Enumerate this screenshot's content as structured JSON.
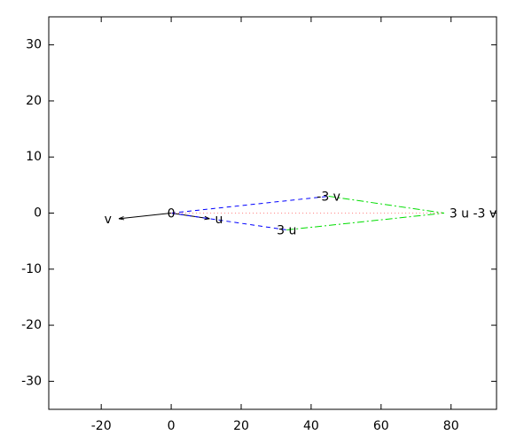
{
  "chart_data": {
    "type": "vector",
    "xlim": [
      -35,
      93
    ],
    "ylim": [
      -35,
      35
    ],
    "xticks": [
      -20,
      0,
      20,
      40,
      60,
      80
    ],
    "yticks": [
      -30,
      -20,
      -10,
      0,
      10,
      20,
      30
    ],
    "segments": [
      {
        "x": [
          0,
          11
        ],
        "y": [
          0,
          -1
        ],
        "color": "#000000",
        "style": "solid",
        "arrow": true
      },
      {
        "x": [
          0,
          -15
        ],
        "y": [
          0,
          -1
        ],
        "color": "#000000",
        "style": "solid",
        "arrow": true
      },
      {
        "x": [
          0,
          33
        ],
        "y": [
          0,
          -3
        ],
        "color": "#0000ff",
        "style": "dashed",
        "arrow": false
      },
      {
        "x": [
          0,
          45
        ],
        "y": [
          0,
          3
        ],
        "color": "#0000ff",
        "style": "dashed",
        "arrow": false
      },
      {
        "x": [
          33,
          78
        ],
        "y": [
          -3,
          0
        ],
        "color": "#00dd00",
        "style": "dashdot",
        "arrow": false
      },
      {
        "x": [
          45,
          78
        ],
        "y": [
          3,
          0
        ],
        "color": "#00dd00",
        "style": "dashdot",
        "arrow": false
      },
      {
        "x": [
          0,
          78
        ],
        "y": [
          0,
          0
        ],
        "color": "#ff8080",
        "style": "dotted",
        "arrow": false
      }
    ],
    "labels": [
      {
        "text": "0",
        "x": 0,
        "y": 0,
        "align": "center"
      },
      {
        "text": "u",
        "x": 11,
        "y": -1,
        "align": "left"
      },
      {
        "text": "v",
        "x": -15,
        "y": -1,
        "align": "right"
      },
      {
        "text": "3 u",
        "x": 33,
        "y": -3,
        "align": "center"
      },
      {
        "text": "-3 v",
        "x": 45,
        "y": 3,
        "align": "center"
      },
      {
        "text": "3 u -3 v",
        "x": 78,
        "y": 0,
        "align": "left"
      }
    ]
  }
}
